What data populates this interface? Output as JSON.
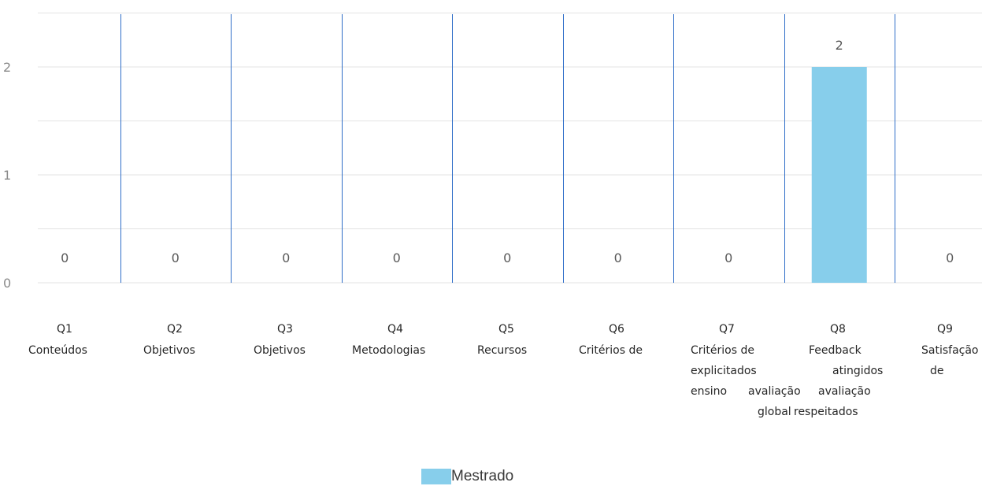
{
  "chart_data": {
    "type": "bar",
    "categories": [
      "Q1 Conteúdos",
      "Q2 Objetivos",
      "Q3 Objetivos",
      "Q4 Metodologias",
      "Q5 Recursos",
      "Q6 Critérios de",
      "Q7 Critérios de explicitados ensino avaliação global",
      "Q8 Feedback atingidos avaliação respeitados",
      "Q9 Satisfação de"
    ],
    "series": [
      {
        "name": "Mestrado",
        "values": [
          0,
          0,
          0,
          0,
          0,
          0,
          0,
          2,
          0
        ]
      }
    ],
    "ylim": [
      0,
      2.5
    ],
    "yticks": [
      "0",
      "1",
      "2"
    ],
    "grid": true,
    "legend_position": "bottom",
    "colors": {
      "bar": "#87CEEB",
      "category_separator": "#2F6EC8",
      "gridline": "#E3E3E3"
    }
  },
  "labels": {
    "q1_line1": "Q1",
    "q1_line2": "Conteúdos",
    "q2_line1": "Q2",
    "q2_line2": "Objetivos",
    "q3_line1": "Q3",
    "q3_line2": "Objetivos",
    "q4_line1": "Q4",
    "q4_line2": "Metodologias",
    "q5_line1": "Q5",
    "q5_line2": "Recursos",
    "q6_line1": "Q6",
    "q6_line2": "Critérios de",
    "q7_line1": "Q7",
    "q7_line2": "Critérios de",
    "q7_line3": "explicitados",
    "q7_line4a": "ensino",
    "q7_line4b": "avaliação",
    "q7_line5": "global",
    "q8_line1": "Q8",
    "q8_line2": "Feedback",
    "q8_line3": "atingidos",
    "q8_line4": "avaliação",
    "q8_line5": "respeitados",
    "q9_line1": "Q9",
    "q9_line2": "Satisfação",
    "q9_line3": "de"
  }
}
